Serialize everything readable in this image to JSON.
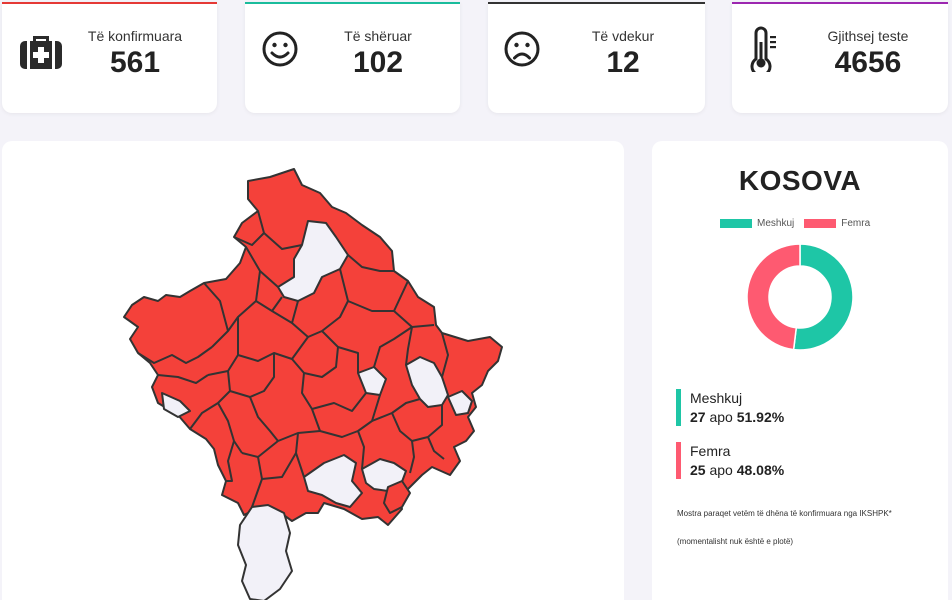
{
  "stats": [
    {
      "label": "Të konfirmuara",
      "value": "561",
      "icon": "medical-kit-icon",
      "accent": "#e53935"
    },
    {
      "label": "Të shëruar",
      "value": "102",
      "icon": "smile-icon",
      "accent": "#1abc9c"
    },
    {
      "label": "Të vdekur",
      "value": "12",
      "icon": "sad-icon",
      "accent": "#333333"
    },
    {
      "label": "Gjithsej teste",
      "value": "4656",
      "icon": "thermometer-icon",
      "accent": "#9c27b0"
    }
  ],
  "map": {
    "fill_affected": "#f4413a",
    "fill_unaffected": "#f2f1f8",
    "stroke": "#333333"
  },
  "side": {
    "title": "KOSOVA",
    "legend": [
      {
        "label": "Meshkuj",
        "color": "#1ec6a6"
      },
      {
        "label": "Femra",
        "color": "#fe5a71"
      }
    ],
    "male": {
      "label": "Meshkuj",
      "count": "27",
      "word": "apo",
      "percent": "51.92%"
    },
    "female": {
      "label": "Femra",
      "count": "25",
      "word": "apo",
      "percent": "48.08%"
    },
    "note1": "Mostra paraqet vetëm të dhëna të konfirmuara nga IKSHPK*",
    "note2": "(momentalisht nuk është e plotë)"
  },
  "chart_data": {
    "type": "pie",
    "categories": [
      "Meshkuj",
      "Femra"
    ],
    "values": [
      51.92,
      48.08
    ],
    "counts": [
      27,
      25
    ],
    "title": "KOSOVA",
    "colors": [
      "#1ec6a6",
      "#fe5a71"
    ],
    "legend": "top"
  }
}
